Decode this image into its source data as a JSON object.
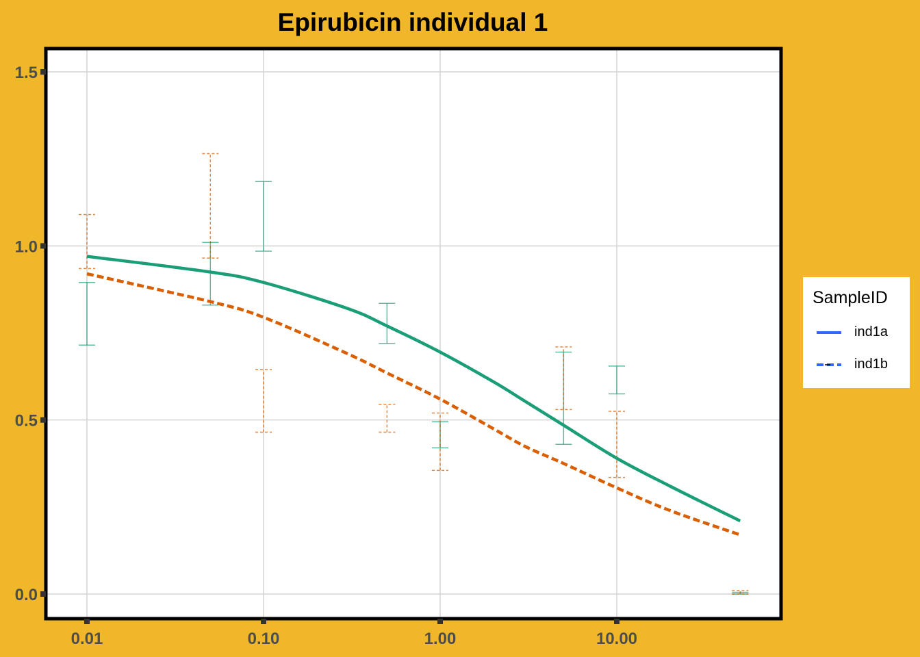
{
  "chart_data": {
    "type": "line",
    "title": "Epirubicin individual 1",
    "xlabel": "",
    "ylabel": "",
    "x_scale": "log10",
    "xlim": [
      0.01,
      50
    ],
    "ylim": [
      -0.065,
      1.565
    ],
    "x_ticks": [
      0.01,
      0.1,
      1,
      10
    ],
    "x_tick_labels": [
      "0.01",
      "0.10",
      "1.00",
      "10.00"
    ],
    "y_ticks": [
      0,
      0.5,
      1,
      1.5
    ],
    "y_tick_labels": [
      "0.0",
      "0.5",
      "1.0",
      "1.5"
    ],
    "grid": true,
    "legend": {
      "title": "SampleID",
      "placement": "right",
      "key_color": "#3366FF",
      "entries": [
        {
          "label": "ind1a",
          "linetype": "solid"
        },
        {
          "label": "ind1b",
          "linetype": "dashed"
        }
      ]
    },
    "series": [
      {
        "name": "ind1a",
        "color": "#1B9E77",
        "linetype": "solid",
        "fit_x": [
          0.01,
          0.05,
          0.1,
          0.3,
          0.5,
          1,
          2,
          3,
          5,
          10,
          20,
          50
        ],
        "fit_y": [
          0.97,
          0.925,
          0.895,
          0.82,
          0.77,
          0.695,
          0.61,
          0.555,
          0.485,
          0.39,
          0.31,
          0.21
        ],
        "points": [
          {
            "x": 0.01,
            "low": 0.715,
            "high": 0.895
          },
          {
            "x": 0.05,
            "low": 0.83,
            "high": 1.01
          },
          {
            "x": 0.1,
            "low": 0.985,
            "high": 1.185
          },
          {
            "x": 0.5,
            "low": 0.72,
            "high": 0.835
          },
          {
            "x": 1,
            "low": 0.42,
            "high": 0.495
          },
          {
            "x": 5,
            "low": 0.43,
            "high": 0.695
          },
          {
            "x": 10,
            "low": 0.575,
            "high": 0.655
          },
          {
            "x": 50,
            "low": 0.0,
            "high": 0.005
          }
        ]
      },
      {
        "name": "ind1b",
        "color": "#D95F02",
        "linetype": "dashed",
        "fit_x": [
          0.01,
          0.05,
          0.1,
          0.3,
          0.5,
          1,
          2,
          3,
          5,
          10,
          20,
          50
        ],
        "fit_y": [
          0.92,
          0.84,
          0.795,
          0.69,
          0.635,
          0.56,
          0.475,
          0.425,
          0.375,
          0.305,
          0.24,
          0.17
        ],
        "points": [
          {
            "x": 0.01,
            "low": 0.935,
            "high": 1.09
          },
          {
            "x": 0.05,
            "low": 0.965,
            "high": 1.265
          },
          {
            "x": 0.1,
            "low": 0.465,
            "high": 0.645
          },
          {
            "x": 0.5,
            "low": 0.465,
            "high": 0.545
          },
          {
            "x": 1,
            "low": 0.355,
            "high": 0.52
          },
          {
            "x": 5,
            "low": 0.53,
            "high": 0.71
          },
          {
            "x": 10,
            "low": 0.335,
            "high": 0.525
          },
          {
            "x": 50,
            "low": 0.0,
            "high": 0.01
          }
        ]
      }
    ]
  }
}
